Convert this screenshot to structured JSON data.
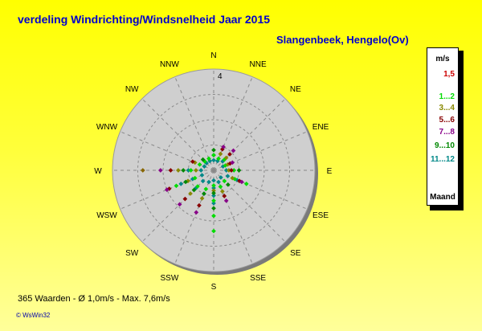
{
  "title": "verdeling Windrichting/Windsnelheid  Jaar 2015",
  "station": "Slangenbeek, Hengelo(Ov)",
  "footer": "365 Waarden   -   Ø 1,0m/s  -  Max. 7,6m/s",
  "credit": "© WsWin32",
  "legend": {
    "unit": "m/s",
    "footer": "Maand",
    "items": [
      {
        "label": "1,5",
        "color": "#cc0000"
      },
      {
        "label": "1...2",
        "color": "#00dd00"
      },
      {
        "label": "3...4",
        "color": "#888800"
      },
      {
        "label": "5...6",
        "color": "#880000"
      },
      {
        "label": "7...8",
        "color": "#880088"
      },
      {
        "label": "9...10",
        "color": "#008800"
      },
      {
        "label": "11...12",
        "color": "#008888"
      }
    ]
  },
  "chart_data": {
    "type": "scatter",
    "radial_max": 4,
    "radial_tick_label": "4",
    "directions": [
      "N",
      "NNE",
      "NE",
      "ENE",
      "E",
      "ESE",
      "SE",
      "SSE",
      "S",
      "SSW",
      "SW",
      "WSW",
      "W",
      "WNW",
      "NW",
      "NNW"
    ],
    "series": [
      {
        "color": "#008888",
        "points": [
          [
            0,
            0.4
          ],
          [
            0,
            0.6
          ],
          [
            1,
            0.4
          ],
          [
            2,
            0.5
          ],
          [
            3,
            0.4
          ],
          [
            4,
            0.5
          ],
          [
            5,
            0.6
          ],
          [
            5,
            1.0
          ],
          [
            6,
            0.4
          ],
          [
            7,
            0.5
          ],
          [
            8,
            0.4
          ],
          [
            8,
            0.7
          ],
          [
            8,
            1.0
          ],
          [
            8,
            1.3
          ],
          [
            9,
            0.5
          ],
          [
            9,
            1.0
          ],
          [
            10,
            0.6
          ],
          [
            10,
            1.0
          ],
          [
            11,
            0.5
          ],
          [
            11,
            0.9
          ],
          [
            11,
            1.4
          ],
          [
            12,
            0.5
          ],
          [
            12,
            1.0
          ],
          [
            13,
            0.4
          ],
          [
            14,
            0.4
          ],
          [
            15,
            0.4
          ]
        ]
      },
      {
        "color": "#00dd00",
        "points": [
          [
            0,
            0.6
          ],
          [
            1,
            0.5
          ],
          [
            2,
            0.6
          ],
          [
            3,
            0.5
          ],
          [
            4,
            0.8
          ],
          [
            5,
            0.9
          ],
          [
            5,
            1.4
          ],
          [
            6,
            0.6
          ],
          [
            7,
            0.7
          ],
          [
            8,
            0.6
          ],
          [
            8,
            1.2
          ],
          [
            8,
            1.8
          ],
          [
            8,
            2.4
          ],
          [
            9,
            0.8
          ],
          [
            10,
            0.9
          ],
          [
            11,
            0.8
          ],
          [
            11,
            1.6
          ],
          [
            12,
            0.9
          ],
          [
            13,
            0.6
          ],
          [
            14,
            0.5
          ],
          [
            15,
            0.5
          ]
        ]
      },
      {
        "color": "#888800",
        "points": [
          [
            1,
            0.7
          ],
          [
            2,
            0.7
          ],
          [
            3,
            0.6
          ],
          [
            4,
            0.6
          ],
          [
            5,
            0.8
          ],
          [
            7,
            0.9
          ],
          [
            8,
            0.8
          ],
          [
            9,
            1.2
          ],
          [
            10,
            1.3
          ],
          [
            11,
            1.1
          ],
          [
            12,
            1.4
          ],
          [
            12,
            0.7
          ],
          [
            13,
            0.8
          ]
        ]
      },
      {
        "color": "#880000",
        "points": [
          [
            1,
            0.9
          ],
          [
            2,
            0.9
          ],
          [
            3,
            0.7
          ],
          [
            4,
            0.7
          ],
          [
            5,
            1.1
          ],
          [
            7,
            1.1
          ],
          [
            9,
            1.5
          ],
          [
            10,
            1.6
          ],
          [
            11,
            1.9
          ],
          [
            12,
            1.7
          ],
          [
            13,
            0.9
          ]
        ]
      },
      {
        "color": "#880088",
        "points": [
          [
            1,
            1.0
          ],
          [
            2,
            1.1
          ],
          [
            3,
            0.8
          ],
          [
            5,
            1.2
          ],
          [
            7,
            1.3
          ],
          [
            9,
            1.8
          ],
          [
            10,
            1.9
          ],
          [
            11,
            2.0
          ],
          [
            12,
            2.1
          ]
        ]
      },
      {
        "color": "#008800",
        "points": [
          [
            0,
            0.8
          ],
          [
            4,
            1.0
          ],
          [
            6,
            0.8
          ],
          [
            8,
            0.9
          ],
          [
            8,
            1.5
          ],
          [
            9,
            1.0
          ],
          [
            10,
            1.1
          ],
          [
            11,
            1.2
          ],
          [
            12,
            1.2
          ],
          [
            14,
            0.6
          ]
        ]
      },
      {
        "color": "#886600",
        "points": [
          [
            12,
            2.8
          ]
        ]
      }
    ]
  }
}
